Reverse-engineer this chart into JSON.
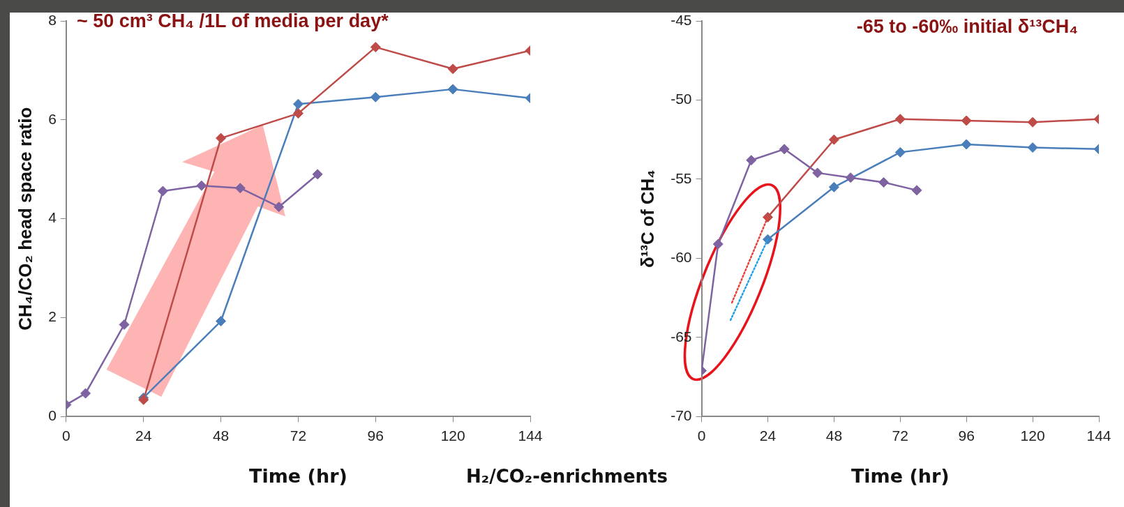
{
  "chart_data": [
    {
      "type": "line",
      "title": "~ 50 cm³ CH₄ /1L of media per day*",
      "xlabel": "Time (hr)",
      "ylabel": "CH₄/CO₂ head space ratio",
      "xlim": [
        0,
        144
      ],
      "xticks": [
        0,
        24,
        48,
        72,
        96,
        120,
        144
      ],
      "ylim": [
        0,
        8
      ],
      "yticks": [
        0,
        2,
        4,
        6,
        8
      ],
      "marker": "diamond",
      "annotations": [
        "H₂/CO₂-enrichments"
      ],
      "series": [
        {
          "color": "#4a7ebb",
          "x": [
            24,
            48,
            72,
            96,
            120,
            144
          ],
          "values": [
            0.38,
            1.93,
            6.32,
            6.46,
            6.62,
            6.44
          ]
        },
        {
          "color": "#be4b48",
          "x": [
            24,
            48,
            72,
            96,
            120,
            144
          ],
          "values": [
            0.34,
            5.63,
            6.13,
            7.47,
            7.03,
            7.4
          ]
        },
        {
          "color": "#7e62a1",
          "x": [
            0,
            6,
            18,
            30,
            42,
            54,
            66,
            78
          ],
          "values": [
            0.24,
            0.47,
            1.86,
            4.56,
            4.67,
            4.62,
            4.24,
            4.9
          ]
        }
      ]
    },
    {
      "type": "line",
      "title": "-65 to -60‰ initial δ¹³CH₄",
      "xlabel": "Time (hr)",
      "ylabel": "δ¹³C of CH₄",
      "xlim": [
        0,
        144
      ],
      "xticks": [
        0,
        24,
        48,
        72,
        96,
        120,
        144
      ],
      "ylim": [
        -70,
        -45
      ],
      "yticks": [
        -70,
        -65,
        -60,
        -55,
        -50,
        -45
      ],
      "marker": "diamond",
      "series": [
        {
          "color": "#4a7ebb",
          "x": [
            24,
            48,
            72,
            96,
            120,
            144
          ],
          "values": [
            -58.8,
            -55.5,
            -53.3,
            -52.8,
            -53,
            -53.1
          ]
        },
        {
          "color": "#be4b48",
          "x": [
            24,
            48,
            72,
            96,
            120,
            144
          ],
          "values": [
            -57.4,
            -52.5,
            -51.2,
            -51.3,
            -51.4,
            -51.2
          ]
        },
        {
          "color": "#7e62a1",
          "x": [
            0,
            6,
            18,
            30,
            42,
            54,
            66,
            78
          ],
          "values": [
            -67.1,
            -59.1,
            -53.8,
            -53.1,
            -54.6,
            -54.9,
            -55.2,
            -55.7
          ]
        },
        {
          "type": "line",
          "color": "#e8403a",
          "line_style": "dotted",
          "marker": "none",
          "x": [
            11,
            24
          ],
          "values": [
            -62.8,
            -57.4
          ]
        },
        {
          "type": "line",
          "color": "#1fa0e8",
          "line_style": "dotted",
          "marker": "none",
          "x": [
            10.5,
            24
          ],
          "values": [
            -63.9,
            -58.8
          ]
        }
      ]
    }
  ]
}
